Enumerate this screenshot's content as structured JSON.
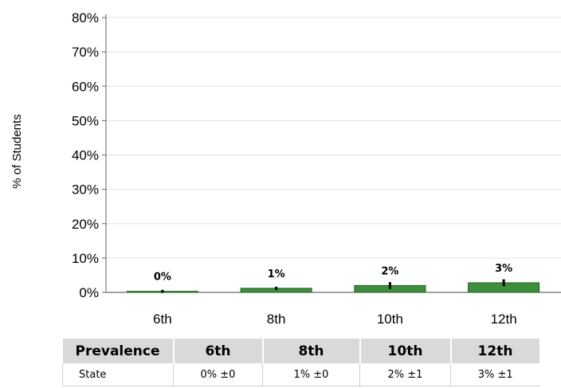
{
  "chart_data": {
    "type": "bar",
    "categories": [
      "6th",
      "8th",
      "10th",
      "12th"
    ],
    "values": [
      0.3,
      1.2,
      2.0,
      2.8
    ],
    "value_labels": [
      "0%",
      "1%",
      "2%",
      "3%"
    ],
    "error": [
      0,
      0,
      1,
      1
    ],
    "ylabel": "% of Students",
    "ylim": [
      0,
      80
    ],
    "yticks": [
      "0%",
      "10%",
      "20%",
      "30%",
      "40%",
      "50%",
      "60%",
      "70%",
      "80%"
    ],
    "ytick_values": [
      0,
      10,
      20,
      30,
      40,
      50,
      60,
      70,
      80
    ],
    "grid": true,
    "bar_color": "#3e8e3e",
    "bar_edge_color": "#1f5c1f"
  },
  "table": {
    "headers": [
      "Prevalence",
      "6th",
      "8th",
      "10th",
      "12th"
    ],
    "rows": [
      [
        "State",
        "0% ±0",
        "1% ±0",
        "2% ±1",
        "3% ±1"
      ]
    ],
    "header_bg": "#d9d9d9"
  }
}
